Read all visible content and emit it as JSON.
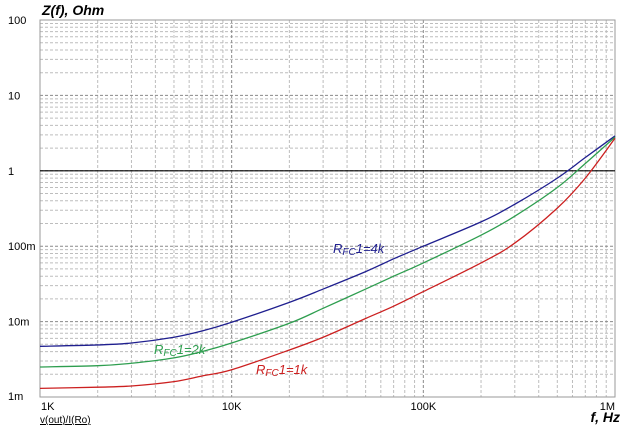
{
  "chart_data": {
    "type": "line",
    "title": "",
    "ylabel": "Z(f), Ohm",
    "xlabel": "f, Hz",
    "x_scale": "log",
    "y_scale": "log",
    "xlim": [
      1000,
      1000000
    ],
    "ylim": [
      0.001,
      100
    ],
    "grid": true,
    "x_ticks": [
      {
        "value": 1000,
        "label": "1K"
      },
      {
        "value": 10000,
        "label": "10K"
      },
      {
        "value": 100000,
        "label": "100K"
      },
      {
        "value": 1000000,
        "label": "1M"
      }
    ],
    "y_ticks": [
      {
        "value": 100,
        "label": "100"
      },
      {
        "value": 10,
        "label": "10"
      },
      {
        "value": 1,
        "label": "1"
      },
      {
        "value": 0.1,
        "label": "100m"
      },
      {
        "value": 0.01,
        "label": "10m"
      },
      {
        "value": 0.001,
        "label": "1m"
      }
    ],
    "reference_line": {
      "y": 1
    },
    "trace_expression": "v(out)/I(Ro)",
    "x": [
      1000,
      2000,
      3000,
      5000,
      7000,
      10000,
      20000,
      30000,
      50000,
      70000,
      100000,
      200000,
      300000,
      500000,
      700000,
      1000000
    ],
    "series": [
      {
        "name": "RFC1=4k",
        "label_main": "R",
        "label_sub": "FC",
        "label_tail": "1=4k",
        "color": "#1f1f8f",
        "values": [
          0.0047,
          0.0049,
          0.0052,
          0.0062,
          0.0075,
          0.0098,
          0.018,
          0.027,
          0.046,
          0.068,
          0.1,
          0.21,
          0.36,
          0.8,
          1.5,
          2.9
        ]
      },
      {
        "name": "RFC1=2k",
        "label_main": "R",
        "label_sub": "FC",
        "label_tail": "1=2k",
        "color": "#2e9e4f",
        "values": [
          0.0025,
          0.0026,
          0.0028,
          0.0033,
          0.004,
          0.0052,
          0.0095,
          0.015,
          0.027,
          0.04,
          0.06,
          0.14,
          0.25,
          0.6,
          1.25,
          2.8
        ]
      },
      {
        "name": "RFC1=1k",
        "label_main": "R",
        "label_sub": "FC",
        "label_tail": "1=1k",
        "color": "#cc2020",
        "values": [
          0.0013,
          0.00135,
          0.0014,
          0.0016,
          0.0019,
          0.0023,
          0.0042,
          0.0062,
          0.011,
          0.016,
          0.025,
          0.06,
          0.11,
          0.32,
          0.8,
          2.7
        ]
      }
    ]
  }
}
